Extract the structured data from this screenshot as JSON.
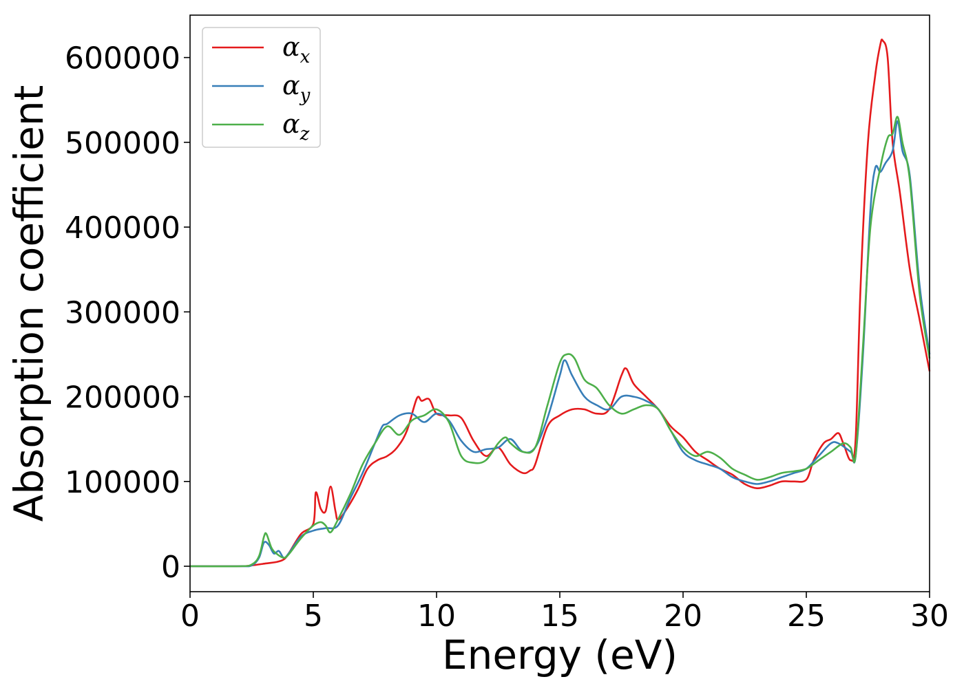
{
  "chart_data": {
    "type": "line",
    "xlabel": "Energy (eV)",
    "ylabel": "Absorption coefficient",
    "xlim": [
      0,
      30
    ],
    "ylim": [
      -30000,
      650000
    ],
    "xticks": [
      0,
      5,
      10,
      15,
      20,
      25,
      30
    ],
    "yticks": [
      0,
      100000,
      200000,
      300000,
      400000,
      500000,
      600000
    ],
    "grid": false,
    "legend_position": "top-left",
    "series": [
      {
        "name": "αx",
        "base": "α",
        "sub": "x",
        "color": "#e41a1c",
        "x": [
          0,
          2,
          2.5,
          3,
          3.5,
          3.8,
          4,
          4.5,
          5,
          5.1,
          5.3,
          5.5,
          5.7,
          5.9,
          6,
          6.3,
          6.8,
          7.2,
          7.6,
          8,
          8.4,
          8.8,
          9.2,
          9.4,
          9.7,
          10,
          10.5,
          11,
          11.5,
          12,
          12.5,
          13,
          13.5,
          13.8,
          14,
          14.5,
          15,
          15.5,
          16,
          16.5,
          17,
          17.5,
          17.7,
          18,
          18.5,
          19,
          19.5,
          20,
          20.5,
          21,
          21.5,
          22,
          22.5,
          23,
          23.5,
          24,
          24.5,
          25,
          25.3,
          25.7,
          26,
          26.3,
          26.5,
          26.8,
          27,
          27.2,
          27.5,
          27.8,
          28,
          28.1,
          28.3,
          28.5,
          28.8,
          29.2,
          29.6,
          30
        ],
        "y": [
          0,
          0,
          1000,
          3000,
          5000,
          8000,
          15000,
          38000,
          50000,
          87000,
          68000,
          65000,
          94000,
          65000,
          55000,
          65000,
          90000,
          115000,
          125000,
          130000,
          140000,
          160000,
          198000,
          195000,
          197000,
          180000,
          178000,
          175000,
          148000,
          130000,
          140000,
          120000,
          110000,
          113000,
          120000,
          165000,
          178000,
          185000,
          185000,
          180000,
          185000,
          225000,
          233000,
          215000,
          200000,
          185000,
          165000,
          152000,
          135000,
          125000,
          115000,
          108000,
          97000,
          92000,
          95000,
          100000,
          100000,
          102000,
          125000,
          145000,
          150000,
          157000,
          145000,
          125000,
          150000,
          330000,
          500000,
          580000,
          615000,
          620000,
          600000,
          500000,
          440000,
          350000,
          290000,
          230000
        ]
      },
      {
        "name": "αy",
        "base": "α",
        "sub": "y",
        "color": "#377eb8",
        "x": [
          0,
          2,
          2.5,
          2.8,
          3,
          3.2,
          3.4,
          3.6,
          3.8,
          4,
          4.5,
          5,
          5.5,
          6,
          6.5,
          7,
          7.5,
          7.8,
          8,
          8.5,
          9,
          9.5,
          10,
          10.5,
          11,
          11.5,
          12,
          12.5,
          13,
          13.5,
          14,
          14.5,
          15,
          15.2,
          15.5,
          16,
          16.5,
          17,
          17.5,
          18,
          18.5,
          19,
          19.5,
          20,
          20.5,
          21,
          21.5,
          22,
          22.5,
          23,
          23.5,
          24,
          24.5,
          25,
          25.5,
          26,
          26.3,
          26.8,
          27,
          27.3,
          27.6,
          27.8,
          28,
          28.2,
          28.5,
          28.7,
          28.9,
          29.2,
          29.6,
          30
        ],
        "y": [
          0,
          0,
          1000,
          10000,
          28000,
          25000,
          15000,
          18000,
          10000,
          15000,
          35000,
          42000,
          45000,
          48000,
          80000,
          110000,
          145000,
          165000,
          168000,
          178000,
          180000,
          170000,
          180000,
          172000,
          148000,
          135000,
          138000,
          140000,
          150000,
          135000,
          140000,
          175000,
          225000,
          243000,
          225000,
          200000,
          190000,
          185000,
          200000,
          200000,
          195000,
          185000,
          160000,
          135000,
          125000,
          120000,
          115000,
          105000,
          100000,
          97000,
          100000,
          105000,
          110000,
          115000,
          130000,
          145000,
          145000,
          135000,
          130000,
          250000,
          420000,
          470000,
          465000,
          475000,
          490000,
          525000,
          490000,
          460000,
          330000,
          250000
        ]
      },
      {
        "name": "αz",
        "base": "α",
        "sub": "z",
        "color": "#4daf4a",
        "x": [
          0,
          2,
          2.5,
          2.8,
          3,
          3.1,
          3.3,
          3.5,
          3.8,
          4,
          4.5,
          5,
          5.3,
          5.5,
          5.7,
          6,
          6.5,
          7,
          7.5,
          8,
          8.5,
          9,
          9.5,
          10,
          10.5,
          11,
          11.5,
          12,
          12.5,
          12.8,
          13,
          13.5,
          14,
          14.5,
          15,
          15.3,
          15.6,
          16,
          16.5,
          17,
          17.5,
          18,
          18.5,
          19,
          19.5,
          20,
          20.5,
          21,
          21.5,
          22,
          22.5,
          23,
          23.5,
          24,
          24.5,
          25,
          25.5,
          26,
          26.5,
          26.8,
          27,
          27.3,
          27.6,
          28,
          28.3,
          28.5,
          28.7,
          28.9,
          29.2,
          29.6,
          30
        ],
        "y": [
          0,
          0,
          2000,
          12000,
          35000,
          38000,
          22000,
          15000,
          10000,
          14000,
          33000,
          48000,
          52000,
          48000,
          40000,
          55000,
          85000,
          120000,
          145000,
          165000,
          155000,
          172000,
          178000,
          185000,
          170000,
          130000,
          122000,
          125000,
          145000,
          152000,
          145000,
          135000,
          140000,
          190000,
          240000,
          250000,
          245000,
          220000,
          210000,
          190000,
          180000,
          185000,
          190000,
          185000,
          160000,
          140000,
          130000,
          135000,
          128000,
          115000,
          108000,
          102000,
          105000,
          110000,
          112000,
          115000,
          125000,
          135000,
          145000,
          140000,
          130000,
          260000,
          400000,
          470000,
          505000,
          510000,
          530000,
          500000,
          455000,
          320000,
          245000
        ]
      }
    ]
  }
}
